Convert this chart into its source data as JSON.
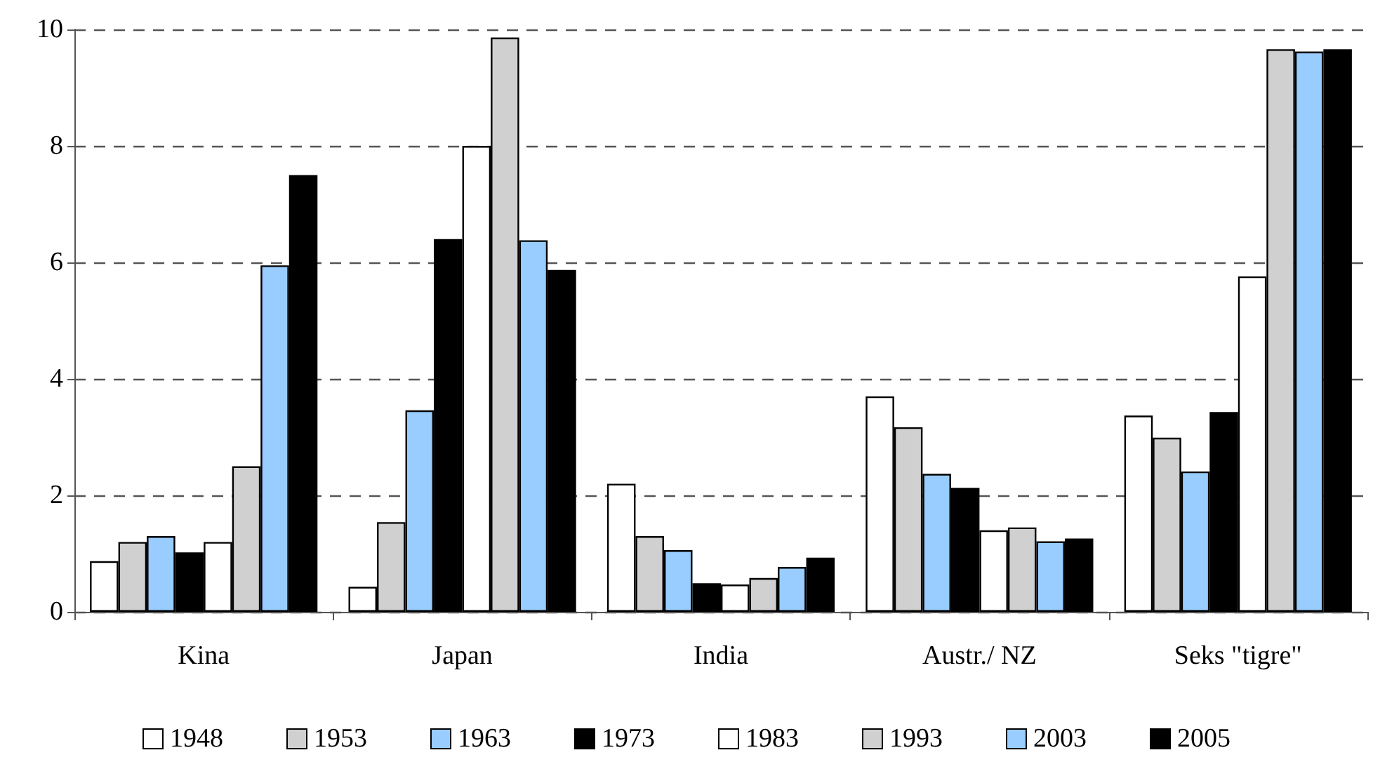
{
  "chart_data": {
    "type": "bar",
    "categories": [
      "Kina",
      "Japan",
      "India",
      "Austr./ NZ",
      "Seks \"tigre\""
    ],
    "series": [
      {
        "name": "1948",
        "color": "#ffffff",
        "values": [
          0.87,
          0.43,
          2.2,
          3.7,
          3.37
        ]
      },
      {
        "name": "1953",
        "color": "#d0d0d0",
        "values": [
          1.2,
          1.54,
          1.3,
          3.17,
          2.99
        ]
      },
      {
        "name": "1963",
        "color": "#99ccff",
        "values": [
          1.3,
          3.46,
          1.06,
          2.37,
          2.41
        ]
      },
      {
        "name": "1973",
        "color": "#000000",
        "values": [
          1.02,
          6.4,
          0.49,
          2.13,
          3.43
        ]
      },
      {
        "name": "1983",
        "color": "#ffffff",
        "values": [
          1.2,
          8.0,
          0.47,
          1.4,
          5.76
        ]
      },
      {
        "name": "1993",
        "color": "#d0d0d0",
        "values": [
          2.5,
          9.86,
          0.58,
          1.45,
          9.66
        ]
      },
      {
        "name": "2003",
        "color": "#99ccff",
        "values": [
          5.95,
          6.38,
          0.77,
          1.21,
          9.62
        ]
      },
      {
        "name": "2005",
        "color": "#000000",
        "values": [
          7.5,
          5.87,
          0.93,
          1.26,
          9.66
        ]
      }
    ],
    "ylim": [
      0,
      10
    ],
    "yticks": [
      0,
      2,
      4,
      6,
      8,
      10
    ],
    "grid": "y",
    "legend": "bottom"
  }
}
